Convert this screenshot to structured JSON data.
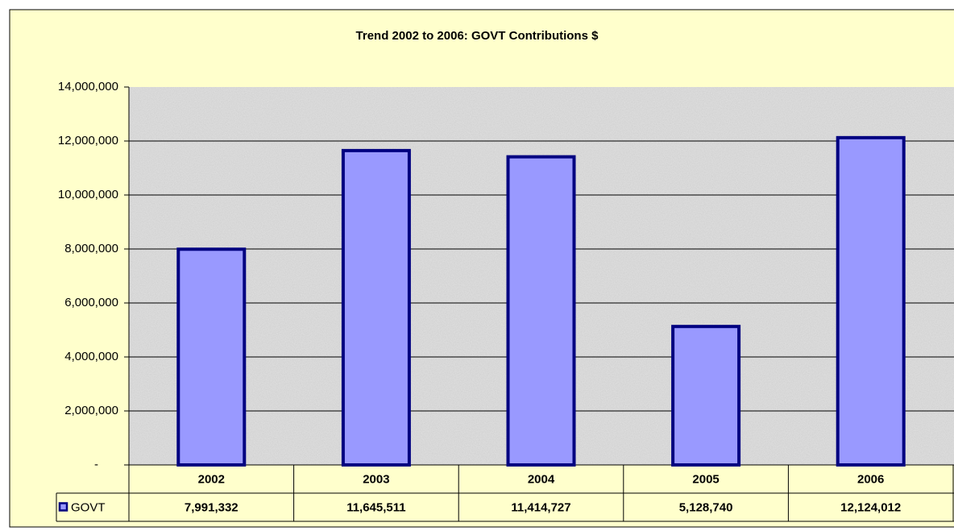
{
  "chart_data": {
    "type": "bar",
    "title": "Trend 2002 to 2006: GOVT Contributions $",
    "categories": [
      "2002",
      "2003",
      "2004",
      "2005",
      "2006"
    ],
    "series": [
      {
        "name": "GOVT",
        "color": "#9999ff",
        "values": [
          7991332,
          11645511,
          11414727,
          5128740,
          12124012
        ],
        "value_labels": [
          "7,991,332",
          "11,645,511",
          "11,414,727",
          "5,128,740",
          "12,124,012"
        ]
      }
    ],
    "ylim": [
      0,
      14000000
    ],
    "yticks": [
      {
        "value": 0,
        "label": "-"
      },
      {
        "value": 2000000,
        "label": "2,000,000"
      },
      {
        "value": 4000000,
        "label": "4,000,000"
      },
      {
        "value": 6000000,
        "label": "6,000,000"
      },
      {
        "value": 8000000,
        "label": "8,000,000"
      },
      {
        "value": 10000000,
        "label": "10,000,000"
      },
      {
        "value": 12000000,
        "label": "12,000,000"
      },
      {
        "value": 14000000,
        "label": "14,000,000"
      }
    ],
    "grid": true
  }
}
